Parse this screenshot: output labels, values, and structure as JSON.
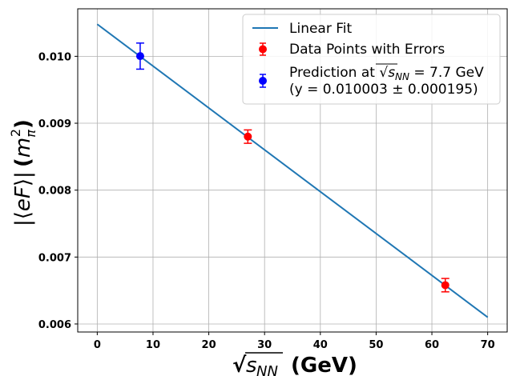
{
  "chart_data": {
    "type": "scatter",
    "xlabel": "√s_NN (GeV)",
    "ylabel": "|⟨eF⟩| (m_π²)",
    "xlim": [
      -3.5,
      73.5
    ],
    "ylim": [
      0.00588,
      0.01071
    ],
    "x_ticks": [
      0,
      10,
      20,
      30,
      40,
      50,
      60,
      70
    ],
    "y_ticks": [
      0.006,
      0.007,
      0.008,
      0.009,
      0.01
    ],
    "x_tick_labels": [
      "0",
      "10",
      "20",
      "30",
      "40",
      "50",
      "60",
      "70"
    ],
    "y_tick_labels": [
      "0.006",
      "0.007",
      "0.008",
      "0.009",
      "0.010"
    ],
    "grid": true,
    "legend_position": "top-right",
    "series": [
      {
        "name": "Linear Fit",
        "kind": "line",
        "color": "#1f77b4",
        "x": [
          0,
          70
        ],
        "y": [
          0.01048,
          0.0061
        ]
      },
      {
        "name": "Data Points with Errors",
        "kind": "errorbar",
        "color": "#ff0000",
        "x": [
          27.0,
          62.4
        ],
        "y": [
          0.0088,
          0.00658
        ],
        "err": [
          0.0001,
          0.0001
        ]
      },
      {
        "name": "Prediction at √s_NN = 7.7 GeV (y = 0.010003 ± 0.000195)",
        "kind": "errorbar",
        "color": "#0000ff",
        "x": [
          7.7
        ],
        "y": [
          0.010003
        ],
        "err": [
          0.000195
        ]
      }
    ]
  },
  "legend": {
    "items": [
      {
        "label": "Linear Fit"
      },
      {
        "label": "Data Points with Errors"
      },
      {
        "label_prefix": "Prediction at ",
        "label_suffix": " = 7.7 GeV",
        "label_line2": "(y = 0.010003 ± 0.000195)"
      }
    ]
  }
}
